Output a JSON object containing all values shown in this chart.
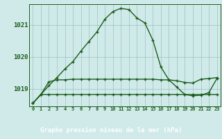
{
  "title": "Graphe pression niveau de la mer (hPa)",
  "bg_color": "#d0eaea",
  "plot_bg_color": "#d0eaea",
  "footer_bg": "#2d6b2d",
  "grid_color": "#9bbfbf",
  "line_color": "#1a5c1a",
  "text_color": "#1a5c1a",
  "footer_text_color": "#1a5c1a",
  "x_values": [
    0,
    1,
    2,
    3,
    4,
    5,
    6,
    7,
    8,
    9,
    10,
    11,
    12,
    13,
    14,
    15,
    16,
    17,
    18,
    19,
    20,
    21,
    22,
    23
  ],
  "x_labels": [
    "0",
    "1",
    "2",
    "3",
    "4",
    "5",
    "6",
    "7",
    "8",
    "9",
    "10",
    "11",
    "12",
    "13",
    "14",
    "15",
    "16",
    "17",
    "18",
    "19",
    "20",
    "21",
    "22",
    "23"
  ],
  "ylim": [
    1018.45,
    1021.65
  ],
  "yticks": [
    1019,
    1020,
    1021
  ],
  "series1": [
    1018.55,
    1018.82,
    1019.1,
    1019.35,
    1019.62,
    1019.85,
    1020.18,
    1020.48,
    1020.78,
    1021.18,
    1021.42,
    1021.52,
    1021.48,
    1021.22,
    1021.06,
    1020.52,
    1019.68,
    1019.28,
    1019.05,
    1018.82,
    1018.78,
    1018.8,
    1018.88,
    1019.32
  ],
  "series2": [
    1018.55,
    1018.82,
    1019.22,
    1019.28,
    1019.28,
    1019.3,
    1019.3,
    1019.3,
    1019.3,
    1019.3,
    1019.3,
    1019.3,
    1019.3,
    1019.3,
    1019.3,
    1019.3,
    1019.28,
    1019.28,
    1019.25,
    1019.2,
    1019.18,
    1019.3,
    1019.32,
    1019.35
  ],
  "series3": [
    1018.55,
    1018.82,
    1018.82,
    1018.82,
    1018.82,
    1018.82,
    1018.82,
    1018.82,
    1018.82,
    1018.82,
    1018.82,
    1018.82,
    1018.82,
    1018.82,
    1018.82,
    1018.82,
    1018.82,
    1018.82,
    1018.82,
    1018.82,
    1018.82,
    1018.82,
    1018.82,
    1018.82
  ]
}
